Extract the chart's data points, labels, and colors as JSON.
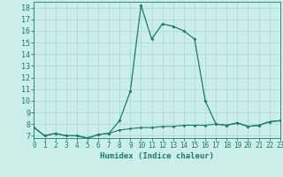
{
  "title": "",
  "xlabel": "Humidex (Indice chaleur)",
  "ylabel": "",
  "x_data": [
    0,
    1,
    2,
    3,
    4,
    5,
    6,
    7,
    8,
    9,
    10,
    11,
    12,
    13,
    14,
    15,
    16,
    17,
    18,
    19,
    20,
    21,
    22,
    23
  ],
  "y_data1": [
    7.7,
    7.0,
    7.2,
    7.0,
    7.0,
    6.8,
    7.1,
    7.2,
    8.3,
    10.8,
    18.2,
    15.3,
    16.6,
    16.4,
    16.0,
    15.3,
    10.0,
    8.0,
    7.9,
    8.1,
    7.8,
    7.9,
    8.2,
    8.3
  ],
  "y_data2": [
    7.7,
    7.0,
    7.2,
    7.0,
    7.0,
    6.8,
    7.1,
    7.2,
    7.5,
    7.6,
    7.7,
    7.7,
    7.8,
    7.8,
    7.9,
    7.9,
    7.9,
    8.0,
    7.9,
    8.1,
    7.8,
    7.9,
    8.2,
    8.3
  ],
  "line_color": "#1a7a6e",
  "bg_color": "#cceee8",
  "grid_color": "#aaddd6",
  "tick_color": "#1a7a6e",
  "xlim": [
    0,
    23
  ],
  "ylim": [
    6.8,
    18.5
  ],
  "yticks": [
    7,
    8,
    9,
    10,
    11,
    12,
    13,
    14,
    15,
    16,
    17,
    18
  ],
  "xticks": [
    0,
    1,
    2,
    3,
    4,
    5,
    6,
    7,
    8,
    9,
    10,
    11,
    12,
    13,
    14,
    15,
    16,
    17,
    18,
    19,
    20,
    21,
    22,
    23
  ],
  "xlabel_fontsize": 6.5,
  "tick_fontsize": 5.5,
  "ytick_fontsize": 6.0
}
